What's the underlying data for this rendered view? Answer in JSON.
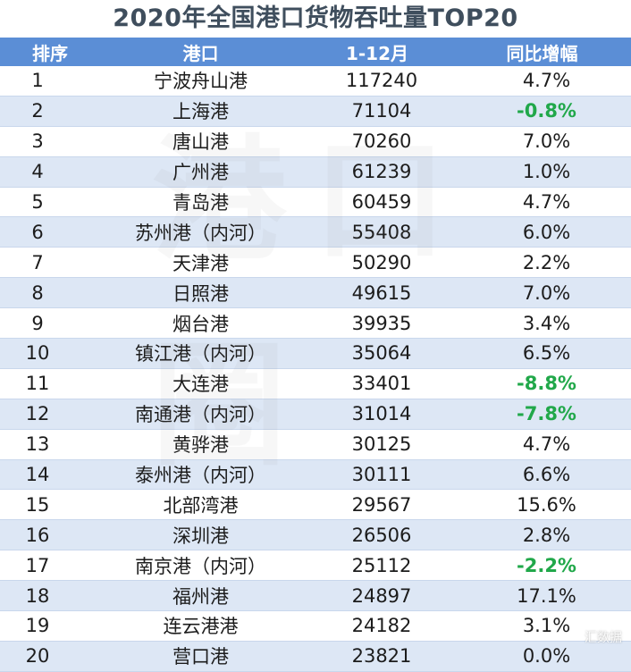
{
  "title": "2020年全国港口货物吞吐量TOP20",
  "headers": {
    "rank": "排序",
    "port": "港口",
    "volume": "1-12月",
    "yoy": "同比增幅"
  },
  "rows": [
    {
      "rank": "1",
      "port": "宁波舟山港",
      "volume": "117240",
      "yoy": "4.7%"
    },
    {
      "rank": "2",
      "port": "上海港",
      "volume": "71104",
      "yoy": "-0.8%"
    },
    {
      "rank": "3",
      "port": "唐山港",
      "volume": "70260",
      "yoy": "7.0%"
    },
    {
      "rank": "4",
      "port": "广州港",
      "volume": "61239",
      "yoy": "1.0%"
    },
    {
      "rank": "5",
      "port": "青岛港",
      "volume": "60459",
      "yoy": "4.7%"
    },
    {
      "rank": "6",
      "port": "苏州港（内河）",
      "volume": "55408",
      "yoy": "6.0%"
    },
    {
      "rank": "7",
      "port": "天津港",
      "volume": "50290",
      "yoy": "2.2%"
    },
    {
      "rank": "8",
      "port": "日照港",
      "volume": "49615",
      "yoy": "7.0%"
    },
    {
      "rank": "9",
      "port": "烟台港",
      "volume": "39935",
      "yoy": "3.4%"
    },
    {
      "rank": "10",
      "port": "镇江港（内河）",
      "volume": "35064",
      "yoy": "6.5%"
    },
    {
      "rank": "11",
      "port": "大连港",
      "volume": "33401",
      "yoy": "-8.8%"
    },
    {
      "rank": "12",
      "port": "南通港（内河）",
      "volume": "31014",
      "yoy": "-7.8%"
    },
    {
      "rank": "13",
      "port": "黄骅港",
      "volume": "30125",
      "yoy": "4.7%"
    },
    {
      "rank": "14",
      "port": "泰州港（内河）",
      "volume": "30111",
      "yoy": "6.6%"
    },
    {
      "rank": "15",
      "port": "北部湾港",
      "volume": "29567",
      "yoy": "15.6%"
    },
    {
      "rank": "16",
      "port": "深圳港",
      "volume": "26506",
      "yoy": "2.8%"
    },
    {
      "rank": "17",
      "port": "南京港（内河）",
      "volume": "25112",
      "yoy": "-2.2%"
    },
    {
      "rank": "18",
      "port": "福州港",
      "volume": "24897",
      "yoy": "17.1%"
    },
    {
      "rank": "19",
      "port": "连云港港",
      "volume": "24182",
      "yoy": "3.1%"
    },
    {
      "rank": "20",
      "port": "营口港",
      "volume": "23821",
      "yoy": "0.0%"
    }
  ],
  "watermark": "港口圈",
  "corner_mark": "汇数据",
  "colors": {
    "header_bg": "#5b8ed6",
    "stripe": "#dde7f5",
    "negative": "#21a84a",
    "title": "#3f4e5d"
  }
}
